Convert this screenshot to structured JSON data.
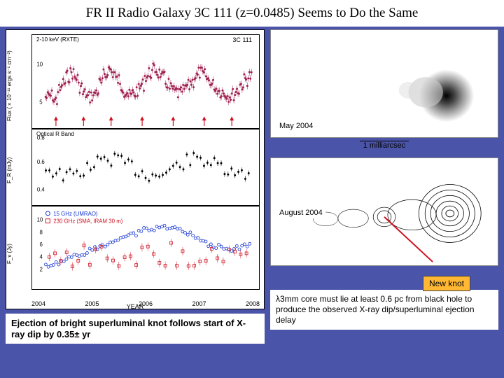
{
  "title": "FR II Radio Galaxy 3C 111 (z=0.0485) Seems to Do the Same",
  "charts": {
    "xaxis_label": "YEAR",
    "years": [
      "2004",
      "2005",
      "2006",
      "2007",
      "2008"
    ],
    "panel1": {
      "label": "2-10 keV (RXTE)",
      "title_right": "3C 111",
      "ylabel": "Flux (×10⁻¹¹ ergs s⁻¹ cm⁻²)",
      "yticks": [
        "5",
        "10"
      ],
      "point_color": "#a02050",
      "bg": "#ffffff",
      "arrow_color": "#d01020"
    },
    "panel2": {
      "label": "Optical R Band",
      "ylabel": "F_R (mJy)",
      "yticks": [
        "0.4",
        "0.6",
        "0.8"
      ],
      "point_color": "#000000",
      "error_bar_color": "#000000"
    },
    "panel3": {
      "legend": [
        {
          "text": "15 GHz (UMRAO)",
          "color": "#1030d0",
          "marker": "circle"
        },
        {
          "text": "230 GHz (SMA, IRAM 30 m)",
          "color": "#d01020",
          "marker": "square"
        }
      ],
      "ylabel": "F_ν (Jy)",
      "yticks": [
        "2",
        "4",
        "6",
        "8",
        "10"
      ]
    }
  },
  "maps": {
    "map1": {
      "date": "May 2004",
      "core_x": 245,
      "core_y": 95
    },
    "map2": {
      "date": "August 2004",
      "core_x": 250,
      "core_y": 80,
      "knot_x": 155,
      "knot_y": 85
    },
    "scale_label": "1 milliarcsec",
    "new_knot_label": "New knot",
    "knot_line_color": "#d01020"
  },
  "caption_left": "Ejection of bright superluminal knot follows start of X-ray dip by 0.35± yr",
  "caption_right": "λ3mm core must lie at least 0.6 pc from black hole to produce the observed X-ray dip/superluminal ejection delay"
}
